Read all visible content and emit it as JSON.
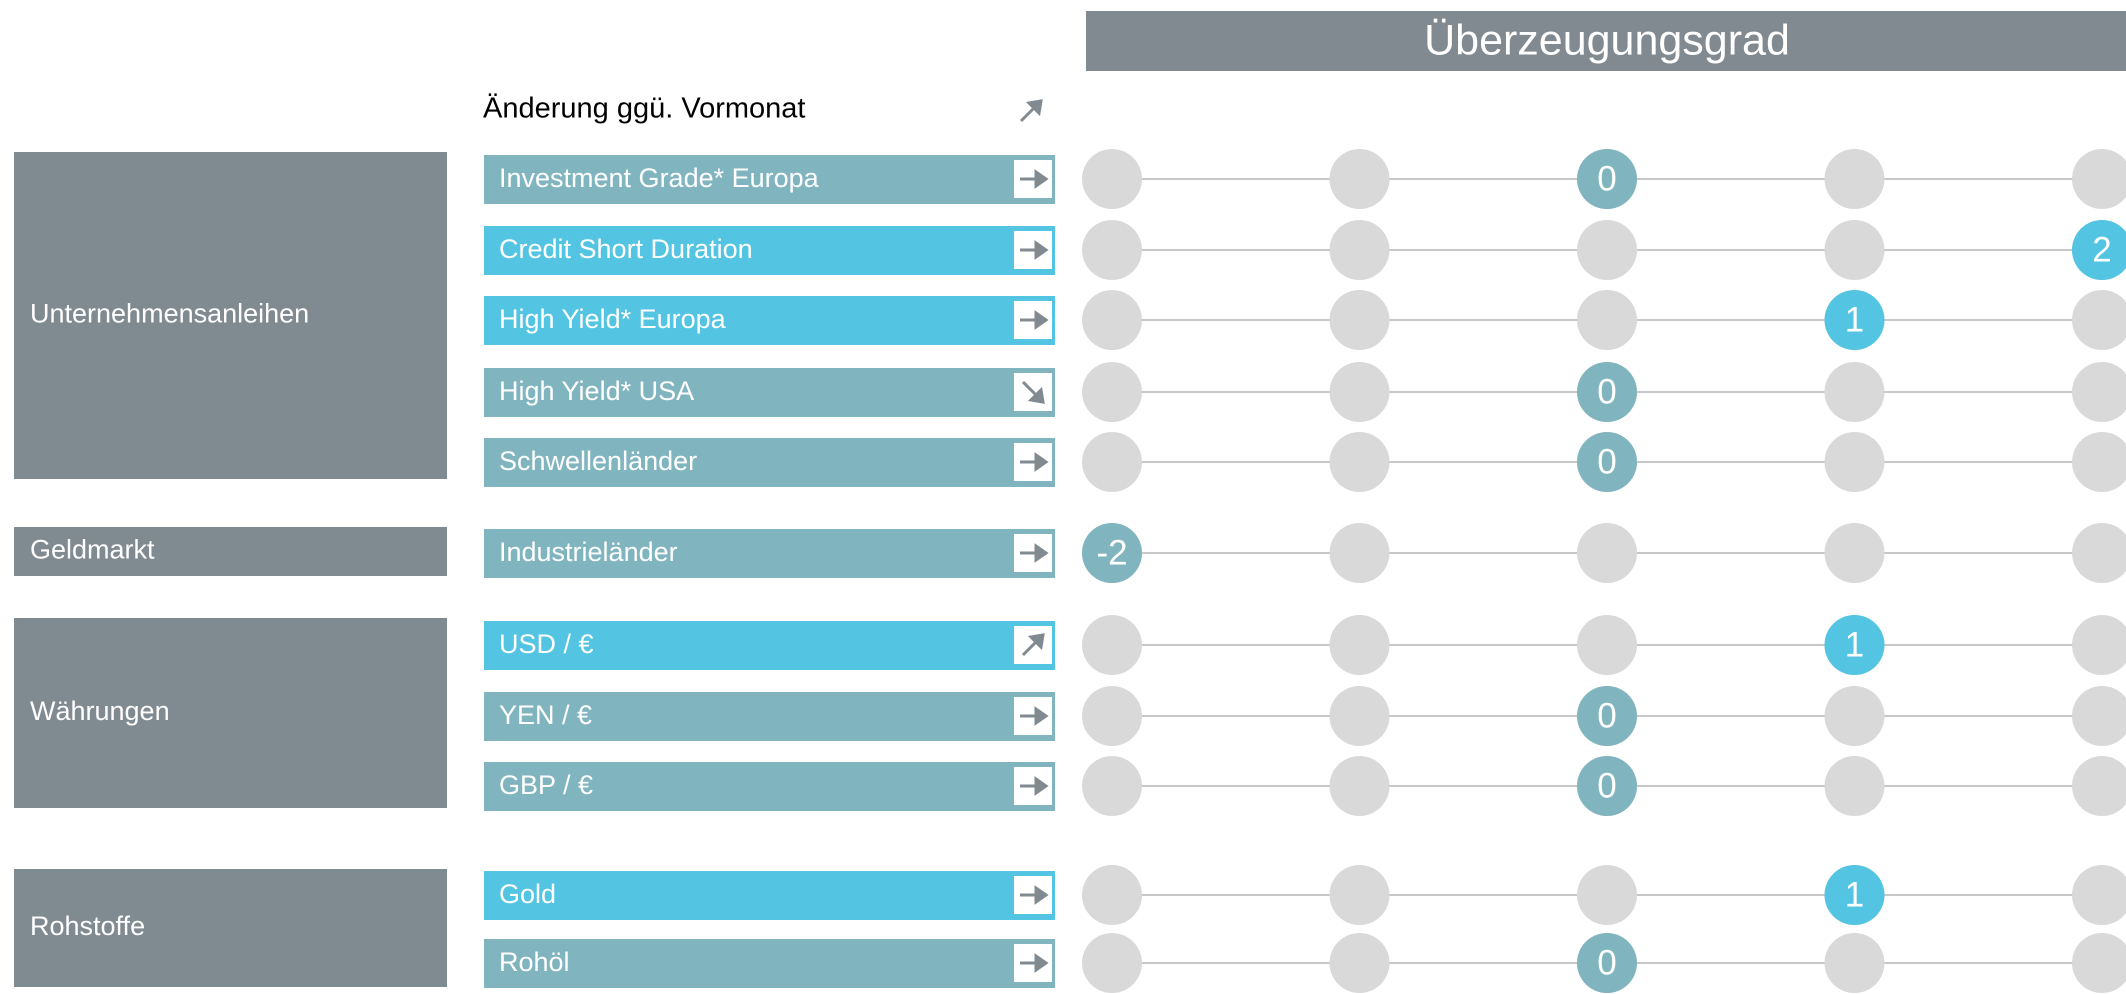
{
  "header": {
    "title": "Überzeugungsgrad",
    "change_label": "Änderung ggü. Vormonat",
    "change_icon": "up"
  },
  "scale": {
    "xlim": [
      -2,
      2
    ],
    "xticks": [
      -2,
      -1,
      0,
      1,
      2
    ]
  },
  "groups": [
    {
      "label": "Unternehmensanleihen",
      "rows": [
        {
          "label": "Investment Grade* Europa",
          "trend": "right",
          "score": 0,
          "color": "#80b5c0"
        },
        {
          "label": "Credit Short Duration",
          "trend": "right",
          "score": 2,
          "color": "#53c5e3"
        },
        {
          "label": "High Yield* Europa",
          "trend": "right",
          "score": 1,
          "color": "#53c5e3"
        },
        {
          "label": "High Yield* USA",
          "trend": "down",
          "score": 0,
          "color": "#80b5c0"
        },
        {
          "label": "Schwellenländer",
          "trend": "right",
          "score": 0,
          "color": "#80b5c0"
        }
      ]
    },
    {
      "label": "Geldmarkt",
      "rows": [
        {
          "label": "Industrieländer",
          "trend": "right",
          "score": -2,
          "color": "#80b5c0"
        }
      ]
    },
    {
      "label": "Währungen",
      "rows": [
        {
          "label": "USD / €",
          "trend": "up",
          "score": 1,
          "color": "#53c5e3"
        },
        {
          "label": "YEN / €",
          "trend": "right",
          "score": 0,
          "color": "#80b5c0"
        },
        {
          "label": "GBP / €",
          "trend": "right",
          "score": 0,
          "color": "#80b5c0"
        }
      ]
    },
    {
      "label": "Rohstoffe",
      "rows": [
        {
          "label": "Gold",
          "trend": "right",
          "score": 1,
          "color": "#53c5e3"
        },
        {
          "label": "Rohöl",
          "trend": "right",
          "score": 0,
          "color": "#80b5c0"
        }
      ]
    }
  ]
}
